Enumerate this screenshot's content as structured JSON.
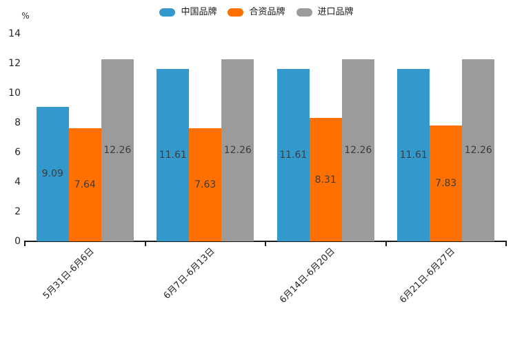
{
  "chart_data": {
    "type": "bar",
    "title": "",
    "unit_label": "%",
    "categories": [
      "5月31日-6月6日",
      "6月7日-6月13日",
      "6月14日-6月20日",
      "6月21日-6月27日"
    ],
    "series": [
      {
        "name": "中国品牌",
        "color": "#3398CB",
        "values": [
          9.09,
          11.61,
          11.61,
          11.61
        ]
      },
      {
        "name": "合资品牌",
        "color": "#FF7000",
        "values": [
          7.64,
          7.63,
          8.31,
          7.83
        ]
      },
      {
        "name": "进口品牌",
        "color": "#9B9B9B",
        "values": [
          12.26,
          12.26,
          12.26,
          12.26
        ]
      }
    ],
    "ylim": [
      0,
      14
    ],
    "yticks": [
      0,
      2,
      4,
      6,
      8,
      10,
      12,
      14
    ],
    "grid": false,
    "legend_position": "top-center",
    "value_labels_shown": true,
    "value_label_color": "#3c3c3c",
    "axis_color": "#1a1a1a"
  }
}
